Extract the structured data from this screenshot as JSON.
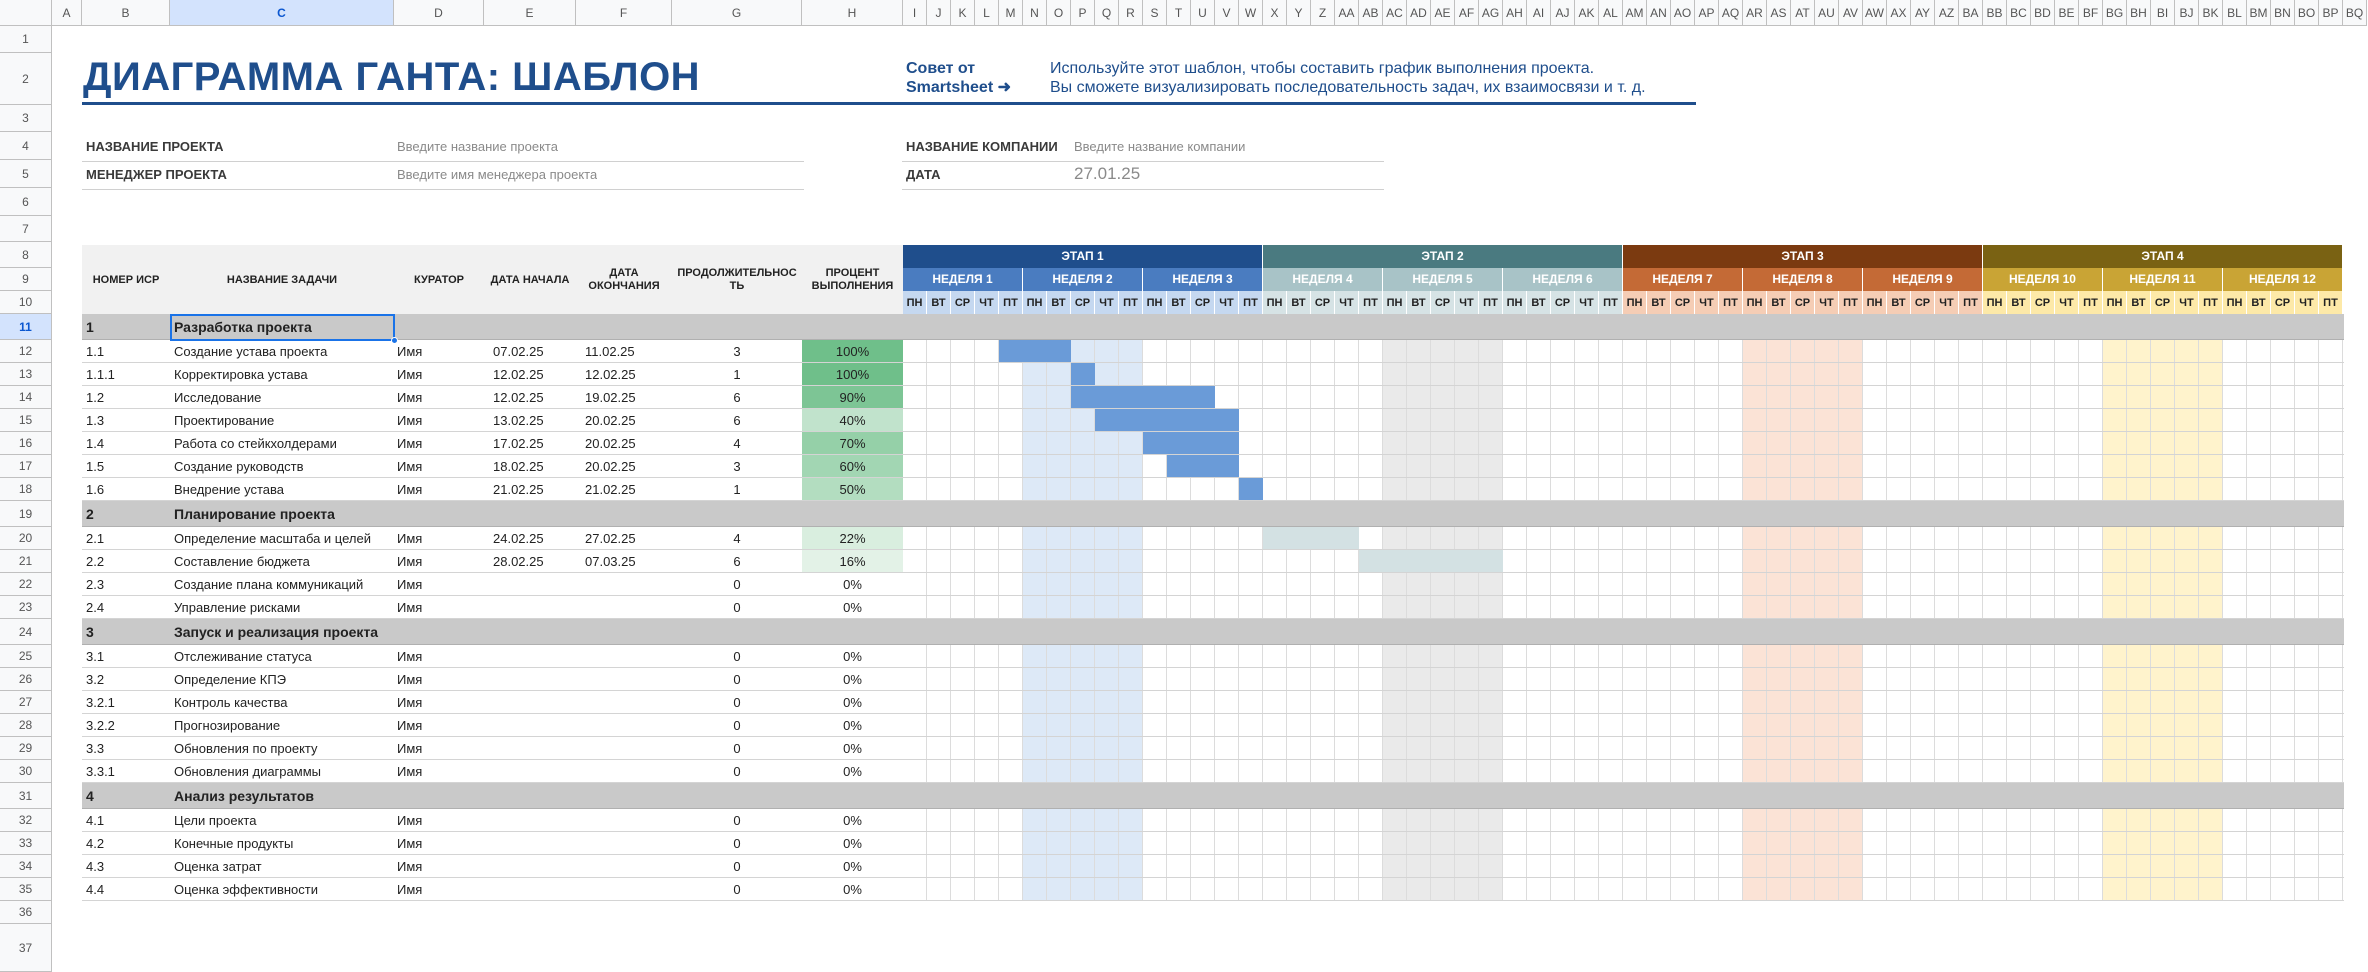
{
  "sheet": {
    "columns": [
      "A",
      "B",
      "C",
      "D",
      "E",
      "F",
      "G",
      "H",
      "I",
      "J",
      "K",
      "L",
      "M",
      "N",
      "O",
      "P",
      "Q",
      "R",
      "S",
      "T",
      "U",
      "V",
      "W",
      "X",
      "Y",
      "Z",
      "AA",
      "AB",
      "AC",
      "AD",
      "AE",
      "AF",
      "AG",
      "AH",
      "AI",
      "AJ",
      "AK",
      "AL",
      "AM",
      "AN",
      "AO",
      "AP",
      "AQ",
      "AR",
      "AS",
      "AT",
      "AU",
      "AV",
      "AW",
      "AX",
      "AY",
      "AZ",
      "BA",
      "BB",
      "BC",
      "BD",
      "BE",
      "BF",
      "BG",
      "BH",
      "BI",
      "BJ",
      "BK",
      "BL",
      "BM",
      "BN",
      "BO",
      "BP",
      "BQ"
    ],
    "selected_column": "C",
    "selected_row": "11",
    "row_numbers": [
      "1",
      "2",
      "3",
      "4",
      "5",
      "6",
      "7",
      "8",
      "9",
      "10",
      "11",
      "12",
      "13",
      "14",
      "15",
      "16",
      "17",
      "18",
      "19",
      "20",
      "21",
      "22",
      "23",
      "24",
      "25",
      "26",
      "27",
      "28",
      "29",
      "30",
      "31",
      "32",
      "33",
      "34",
      "35",
      "36",
      "37"
    ]
  },
  "header": {
    "title": "ДИАГРАММА ГАНТА: ШАБЛОН",
    "tip_label_line1": "Совет от",
    "tip_label_line2": "Smartsheet ➜",
    "tip_line1": "Используйте этот шаблон, чтобы составить график выполнения проекта.",
    "tip_line2": "Вы сможете визуализировать последовательность задач, их взаимосвязи и т. д."
  },
  "info": {
    "project_name_label": "НАЗВАНИЕ ПРОЕКТА",
    "project_name_placeholder": "Введите название проекта",
    "manager_label": "МЕНЕДЖЕР ПРОЕКТА",
    "manager_placeholder": "Введите имя менеджера проекта",
    "company_label": "НАЗВАНИЕ КОМПАНИИ",
    "company_placeholder": "Введите название компании",
    "date_label": "ДАТА",
    "date_value": "27.01.25"
  },
  "table_headers": {
    "wbs": "НОМЕР ИСР",
    "task": "НАЗВАНИЕ ЗАДАЧИ",
    "owner": "КУРАТОР",
    "start": "ДАТА НАЧАЛА",
    "end": "ДАТА ОКОНЧАНИЯ",
    "duration": "ПРОДОЛЖИТЕЛЬНОСТЬ",
    "percent": "ПРОЦЕНТ ВЫПОЛНЕНИЯ"
  },
  "phases": [
    {
      "label": "ЭТАП 1",
      "color": "#1f4e8c",
      "week_color": "#4a7cc0",
      "day_color": "#c5d8f0",
      "shade_color": "#dde9f7"
    },
    {
      "label": "ЭТАП 2",
      "color": "#4a7a80",
      "week_color": "#a8c3c7",
      "day_color": "#d6e3e5",
      "shade_color": "#eaeaea"
    },
    {
      "label": "ЭТАП 3",
      "color": "#7b3a10",
      "week_color": "#c46a36",
      "day_color": "#f5cdb5",
      "shade_color": "#fbe3d6"
    },
    {
      "label": "ЭТАП 4",
      "color": "#7a6213",
      "week_color": "#c9a435",
      "day_color": "#fde9a8",
      "shade_color": "#fff3cc"
    }
  ],
  "weeks": [
    "НЕДЕЛЯ 1",
    "НЕДЕЛЯ 2",
    "НЕДЕЛЯ 3",
    "НЕДЕЛЯ 4",
    "НЕДЕЛЯ 5",
    "НЕДЕЛЯ 6",
    "НЕДЕЛЯ 7",
    "НЕДЕЛЯ 8",
    "НЕДЕЛЯ 9",
    "НЕДЕЛЯ 10",
    "НЕДЕЛЯ 11",
    "НЕДЕЛЯ 12"
  ],
  "days": [
    "ПН",
    "ВТ",
    "СР",
    "ЧТ",
    "ПТ"
  ],
  "rows": [
    {
      "type": "section",
      "wbs": "1",
      "task": "Разработка проекта"
    },
    {
      "type": "task",
      "wbs": "1.1",
      "task": "Создание устава проекта",
      "owner": "Имя",
      "start": "07.02.25",
      "end": "11.02.25",
      "duration": "3",
      "percent": "100%",
      "pct": 100,
      "bar_start": 4,
      "bar_len": 3,
      "bar_color": "#6a9bd8"
    },
    {
      "type": "task",
      "wbs": "1.1.1",
      "task": "Корректировка устава",
      "owner": "Имя",
      "start": "12.02.25",
      "end": "12.02.25",
      "duration": "1",
      "percent": "100%",
      "pct": 100,
      "bar_start": 7,
      "bar_len": 1,
      "bar_color": "#6a9bd8"
    },
    {
      "type": "task",
      "wbs": "1.2",
      "task": "Исследование",
      "owner": "Имя",
      "start": "12.02.25",
      "end": "19.02.25",
      "duration": "6",
      "percent": "90%",
      "pct": 90,
      "bar_start": 7,
      "bar_len": 6,
      "bar_color": "#6a9bd8"
    },
    {
      "type": "task",
      "wbs": "1.3",
      "task": "Проектирование",
      "owner": "Имя",
      "start": "13.02.25",
      "end": "20.02.25",
      "duration": "6",
      "percent": "40%",
      "pct": 40,
      "bar_start": 8,
      "bar_len": 6,
      "bar_color": "#6a9bd8"
    },
    {
      "type": "task",
      "wbs": "1.4",
      "task": "Работа со стейкхолдерами",
      "owner": "Имя",
      "start": "17.02.25",
      "end": "20.02.25",
      "duration": "4",
      "percent": "70%",
      "pct": 70,
      "bar_start": 10,
      "bar_len": 4,
      "bar_color": "#6a9bd8"
    },
    {
      "type": "task",
      "wbs": "1.5",
      "task": "Создание руководств",
      "owner": "Имя",
      "start": "18.02.25",
      "end": "20.02.25",
      "duration": "3",
      "percent": "60%",
      "pct": 60,
      "bar_start": 11,
      "bar_len": 3,
      "bar_color": "#6a9bd8"
    },
    {
      "type": "task",
      "wbs": "1.6",
      "task": "Внедрение устава",
      "owner": "Имя",
      "start": "21.02.25",
      "end": "21.02.25",
      "duration": "1",
      "percent": "50%",
      "pct": 50,
      "bar_start": 14,
      "bar_len": 1,
      "bar_color": "#6a9bd8"
    },
    {
      "type": "section",
      "wbs": "2",
      "task": "Планирование проекта"
    },
    {
      "type": "task",
      "wbs": "2.1",
      "task": "Определение масштаба и целей",
      "owner": "Имя",
      "start": "24.02.25",
      "end": "27.02.25",
      "duration": "4",
      "percent": "22%",
      "pct": 22,
      "bar_start": 15,
      "bar_len": 4,
      "bar_color": "#d3e1e3"
    },
    {
      "type": "task",
      "wbs": "2.2",
      "task": "Составление бюджета",
      "owner": "Имя",
      "start": "28.02.25",
      "end": "07.03.25",
      "duration": "6",
      "percent": "16%",
      "pct": 16,
      "bar_start": 19,
      "bar_len": 6,
      "bar_color": "#d3e1e3"
    },
    {
      "type": "task",
      "wbs": "2.3",
      "task": "Создание плана коммуникаций",
      "owner": "Имя",
      "start": "",
      "end": "",
      "duration": "0",
      "percent": "0%",
      "pct": 0,
      "bar_start": 0,
      "bar_len": 0,
      "bar_color": ""
    },
    {
      "type": "task",
      "wbs": "2.4",
      "task": "Управление рисками",
      "owner": "Имя",
      "start": "",
      "end": "",
      "duration": "0",
      "percent": "0%",
      "pct": 0,
      "bar_start": 0,
      "bar_len": 0,
      "bar_color": ""
    },
    {
      "type": "section",
      "wbs": "3",
      "task": "Запуск и реализация проекта"
    },
    {
      "type": "task",
      "wbs": "3.1",
      "task": "Отслеживание статуса",
      "owner": "Имя",
      "start": "",
      "end": "",
      "duration": "0",
      "percent": "0%",
      "pct": 0,
      "bar_start": 0,
      "bar_len": 0,
      "bar_color": ""
    },
    {
      "type": "task",
      "wbs": "3.2",
      "task": "Определение КПЭ",
      "owner": "Имя",
      "start": "",
      "end": "",
      "duration": "0",
      "percent": "0%",
      "pct": 0,
      "bar_start": 0,
      "bar_len": 0,
      "bar_color": ""
    },
    {
      "type": "task",
      "wbs": "3.2.1",
      "task": "Контроль качества",
      "owner": "Имя",
      "start": "",
      "end": "",
      "duration": "0",
      "percent": "0%",
      "pct": 0,
      "bar_start": 0,
      "bar_len": 0,
      "bar_color": ""
    },
    {
      "type": "task",
      "wbs": "3.2.2",
      "task": "Прогнозирование",
      "owner": "Имя",
      "start": "",
      "end": "",
      "duration": "0",
      "percent": "0%",
      "pct": 0,
      "bar_start": 0,
      "bar_len": 0,
      "bar_color": ""
    },
    {
      "type": "task",
      "wbs": "3.3",
      "task": "Обновления по проекту",
      "owner": "Имя",
      "start": "",
      "end": "",
      "duration": "0",
      "percent": "0%",
      "pct": 0,
      "bar_start": 0,
      "bar_len": 0,
      "bar_color": ""
    },
    {
      "type": "task",
      "wbs": "3.3.1",
      "task": "Обновления диаграммы",
      "owner": "Имя",
      "start": "",
      "end": "",
      "duration": "0",
      "percent": "0%",
      "pct": 0,
      "bar_start": 0,
      "bar_len": 0,
      "bar_color": ""
    },
    {
      "type": "section",
      "wbs": "4",
      "task": "Анализ результатов"
    },
    {
      "type": "task",
      "wbs": "4.1",
      "task": "Цели проекта",
      "owner": "Имя",
      "start": "",
      "end": "",
      "duration": "0",
      "percent": "0%",
      "pct": 0,
      "bar_start": 0,
      "bar_len": 0,
      "bar_color": ""
    },
    {
      "type": "task",
      "wbs": "4.2",
      "task": "Конечные продукты",
      "owner": "Имя",
      "start": "",
      "end": "",
      "duration": "0",
      "percent": "0%",
      "pct": 0,
      "bar_start": 0,
      "bar_len": 0,
      "bar_color": ""
    },
    {
      "type": "task",
      "wbs": "4.3",
      "task": "Оценка затрат",
      "owner": "Имя",
      "start": "",
      "end": "",
      "duration": "0",
      "percent": "0%",
      "pct": 0,
      "bar_start": 0,
      "bar_len": 0,
      "bar_color": ""
    },
    {
      "type": "task",
      "wbs": "4.4",
      "task": "Оценка эффективности",
      "owner": "Имя",
      "start": "",
      "end": "",
      "duration": "0",
      "percent": "0%",
      "pct": 0,
      "bar_start": 0,
      "bar_len": 0,
      "bar_color": ""
    }
  ]
}
